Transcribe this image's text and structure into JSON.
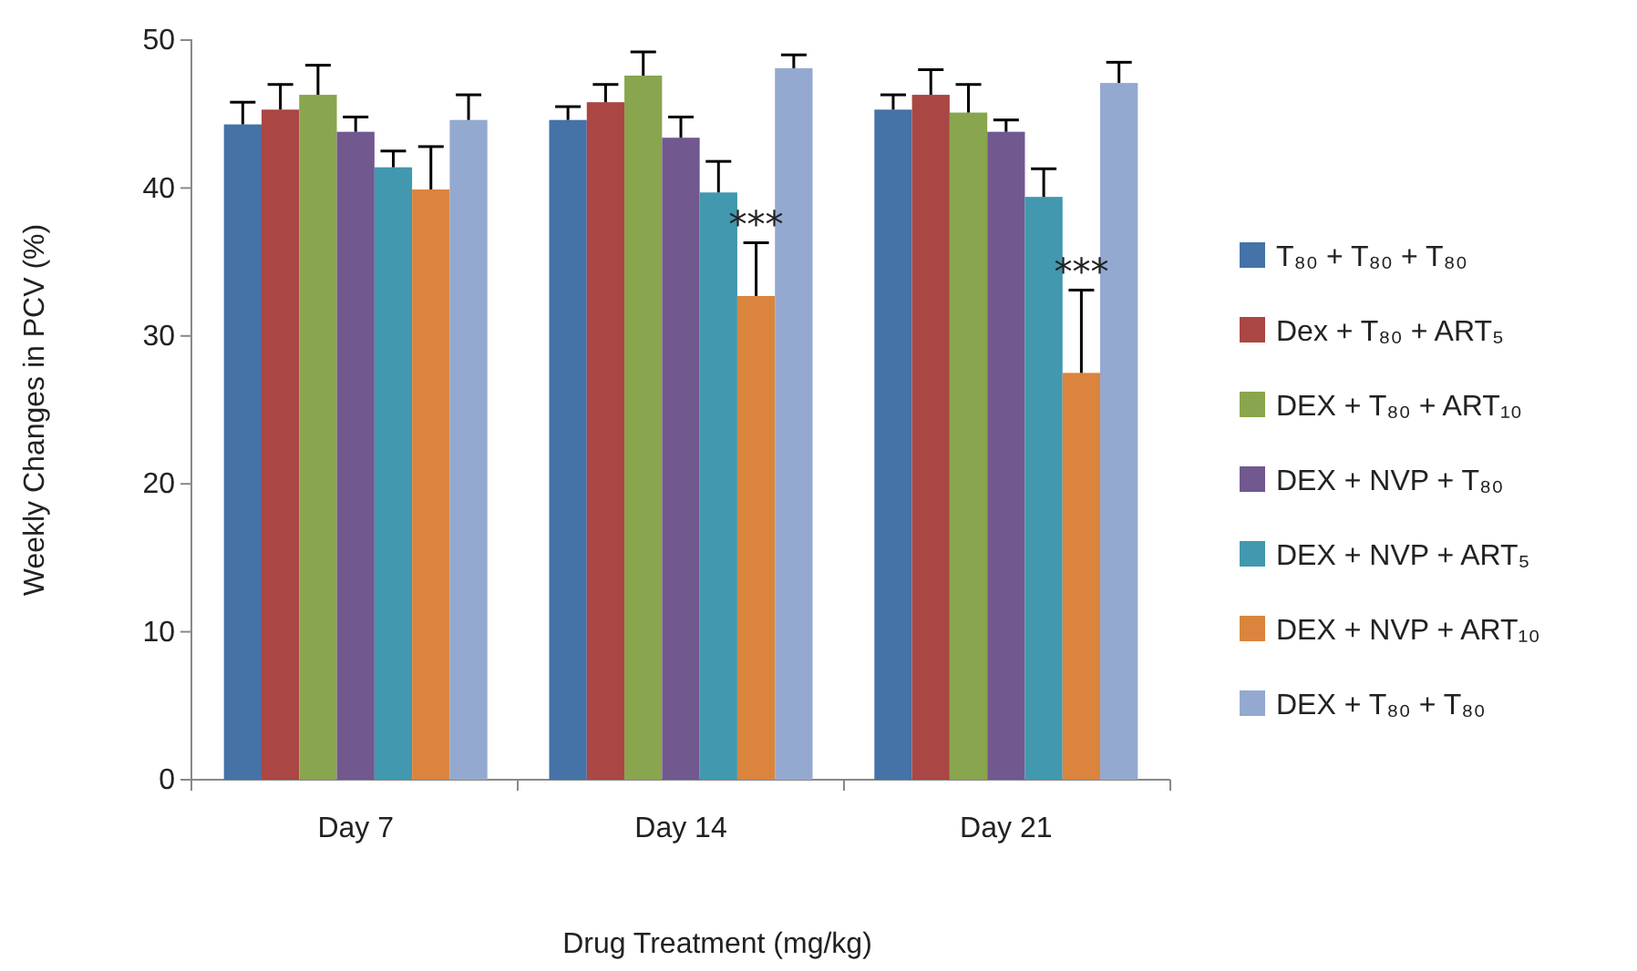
{
  "chart_data": {
    "type": "bar",
    "xlabel": "Drug Treatment (mg/kg)",
    "ylabel": "Weekly Changes in PCV (%)",
    "categories": [
      "Day 7",
      "Day 14",
      "Day 21"
    ],
    "series": [
      {
        "name": "T₈₀ + T₈₀  + T₈₀",
        "color": "#4572a7",
        "values": [
          44.3,
          44.6,
          45.3
        ],
        "errors": [
          [
            44.3,
            45.8
          ],
          [
            44.6,
            45.5
          ],
          [
            45.3,
            46.3
          ]
        ]
      },
      {
        "name": "Dex + T₈₀  + ART₅",
        "color": "#aa4643",
        "values": [
          45.3,
          45.8,
          46.3
        ],
        "errors": [
          [
            45.3,
            47.0
          ],
          [
            45.8,
            47.0
          ],
          [
            46.3,
            48.0
          ]
        ]
      },
      {
        "name": "DEX + T₈₀  + ART₁₀",
        "color": "#89a54e",
        "values": [
          46.3,
          47.6,
          45.1
        ],
        "errors": [
          [
            46.3,
            48.3
          ],
          [
            47.6,
            49.2
          ],
          [
            45.1,
            47.0
          ]
        ]
      },
      {
        "name": "DEX + NVP + T₈₀",
        "color": "#71588f",
        "values": [
          43.8,
          43.4,
          43.8
        ],
        "errors": [
          [
            43.8,
            44.8
          ],
          [
            43.4,
            44.8
          ],
          [
            43.8,
            44.6
          ]
        ]
      },
      {
        "name": "DEX + NVP + ART₅",
        "color": "#4198af",
        "values": [
          41.4,
          39.7,
          39.4
        ],
        "errors": [
          [
            41.4,
            42.5
          ],
          [
            39.7,
            41.8
          ],
          [
            39.4,
            41.3
          ]
        ]
      },
      {
        "name": "DEX + NVP + ART₁₀",
        "color": "#db843d",
        "values": [
          39.9,
          32.7,
          27.5
        ],
        "errors": [
          [
            39.9,
            42.8
          ],
          [
            32.7,
            36.3
          ],
          [
            27.5,
            33.1
          ]
        ]
      },
      {
        "name": "DEX + T₈₀  + T₈₀",
        "color": "#93a9cf",
        "values": [
          44.6,
          48.1,
          47.1
        ],
        "errors": [
          [
            44.6,
            46.3
          ],
          [
            48.1,
            49.0
          ],
          [
            47.1,
            48.5
          ]
        ]
      }
    ],
    "annotations": [
      "***",
      "***"
    ],
    "ylim": [
      0,
      50
    ],
    "yticks": [
      0,
      10,
      20,
      30,
      40,
      50
    ],
    "grid": false,
    "legend": "right"
  }
}
